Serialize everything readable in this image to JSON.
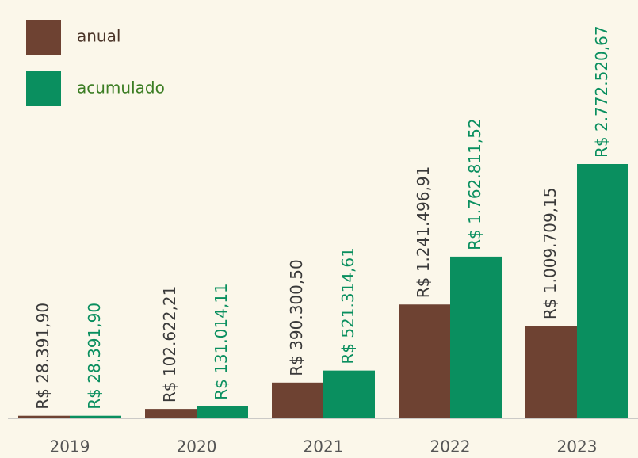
{
  "chart_data": {
    "type": "bar",
    "categories": [
      "2019",
      "2020",
      "2021",
      "2022",
      "2023"
    ],
    "series": [
      {
        "name": "anual",
        "color": "#6e4232",
        "label_color": "#3a3a3a",
        "values": [
          28391.9,
          102622.21,
          390300.5,
          1241496.91,
          1009709.15
        ],
        "value_labels": [
          "R$ 28.391,90",
          "R$ 102.622,21",
          "R$ 390.300,50",
          "R$ 1.241.496,91",
          "R$ 1.009.709,15"
        ]
      },
      {
        "name": "acumulado",
        "color": "#0a8f5f",
        "label_color": "#0a8f5f",
        "values": [
          28391.9,
          131014.11,
          521314.61,
          1762811.52,
          2772520.67
        ],
        "value_labels": [
          "R$ 28.391,90",
          "R$ 131.014,11",
          "R$ 521.314,61",
          "R$ 1.762.811,52",
          "R$ 2.772.520,67"
        ]
      }
    ],
    "legend": "top-left"
  }
}
